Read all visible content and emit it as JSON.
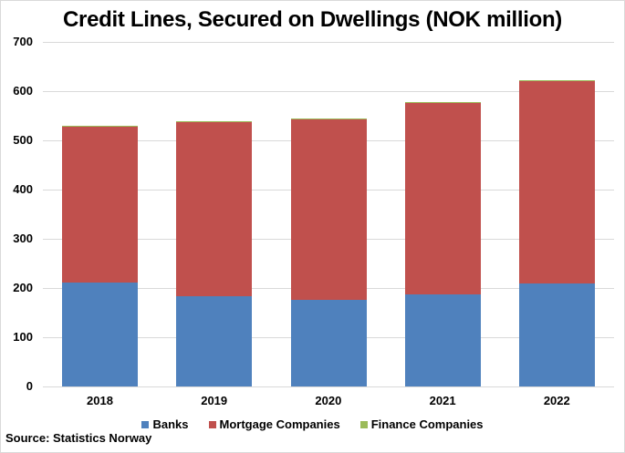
{
  "chart_data": {
    "type": "bar",
    "stacked": true,
    "title": "Credit Lines, Secured on Dwellings (NOK million)",
    "xlabel": "",
    "ylabel": "",
    "categories": [
      "2018",
      "2019",
      "2020",
      "2021",
      "2022"
    ],
    "series": [
      {
        "name": "Banks",
        "color": "#4f81bd",
        "values": [
          211,
          184,
          176,
          187,
          209
        ]
      },
      {
        "name": "Mortgage Companies",
        "color": "#c0504d",
        "values": [
          317,
          353,
          367,
          389,
          412
        ]
      },
      {
        "name": "Finance Companies",
        "color": "#9bbb59",
        "values": [
          2,
          2,
          2,
          2,
          2
        ]
      }
    ],
    "ylim": [
      0,
      700
    ],
    "yticks": [
      "0",
      "100",
      "200",
      "300",
      "400",
      "500",
      "600",
      "700"
    ],
    "grid": true,
    "legend_position": "bottom",
    "source": "Source: Statistics Norway"
  }
}
